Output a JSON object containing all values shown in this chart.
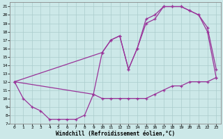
{
  "xlabel": "Windchill (Refroidissement éolien,°C)",
  "background_color": "#cce8e8",
  "grid_color": "#aacccc",
  "line_color": "#993399",
  "xlim": [
    -0.5,
    23.5
  ],
  "ylim": [
    7,
    21.5
  ],
  "yticks": [
    7,
    8,
    9,
    10,
    11,
    12,
    13,
    14,
    15,
    16,
    17,
    18,
    19,
    20,
    21
  ],
  "xticks": [
    0,
    1,
    2,
    3,
    4,
    5,
    6,
    7,
    8,
    9,
    10,
    11,
    12,
    13,
    14,
    15,
    16,
    17,
    18,
    19,
    20,
    21,
    22,
    23
  ],
  "line1_x": [
    0,
    1,
    2,
    3,
    4,
    5,
    6,
    7,
    8,
    9,
    10,
    11,
    12,
    13,
    14,
    15,
    16,
    17,
    18,
    19,
    20,
    21,
    22,
    23
  ],
  "line1_y": [
    12,
    10,
    9,
    8.5,
    7.5,
    7.5,
    7.5,
    7.5,
    8,
    10.5,
    10,
    10,
    10,
    10,
    10,
    10,
    10.5,
    11,
    11.5,
    11.5,
    12,
    12,
    12,
    12.5
  ],
  "line2_x": [
    0,
    9,
    10,
    11,
    12,
    13,
    14,
    15,
    16,
    17,
    18,
    19,
    20,
    21,
    22,
    23
  ],
  "line2_y": [
    12,
    10.5,
    15.5,
    17,
    17.5,
    13.5,
    16,
    19,
    19.5,
    21,
    21,
    21,
    20.5,
    20,
    18,
    12.5
  ],
  "line3_x": [
    0,
    10,
    11,
    12,
    13,
    14,
    15,
    16,
    17,
    18,
    19,
    20,
    21,
    22,
    23
  ],
  "line3_y": [
    12,
    15.5,
    17,
    17.5,
    13.5,
    16,
    19.5,
    20,
    21,
    21,
    21,
    20.5,
    20,
    18.5,
    13.5
  ]
}
